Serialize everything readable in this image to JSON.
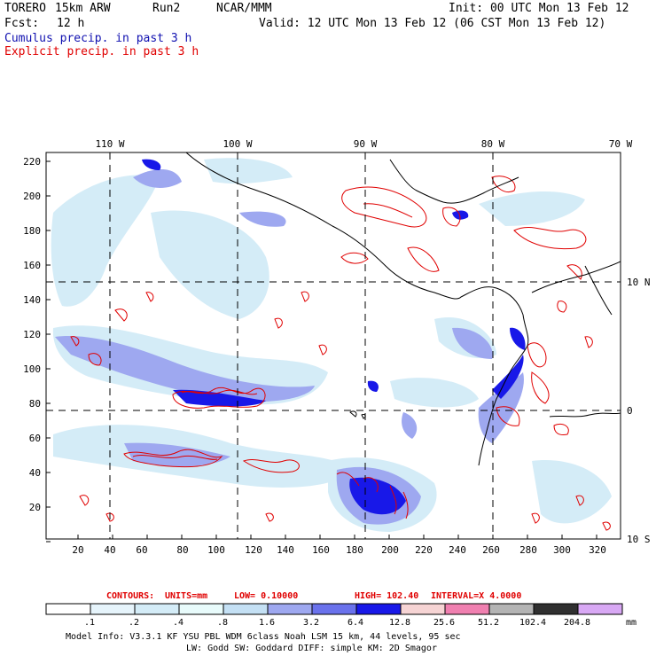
{
  "header": {
    "model": "TORERO",
    "resolution": "15km ARW",
    "run": "Run2",
    "org": "NCAR/MMM",
    "init": "Init: 00 UTC Mon 13 Feb 12",
    "fcst_label": "Fcst:",
    "fcst_value": "12 h",
    "valid": "Valid: 12 UTC Mon 13 Feb 12 (06 CST Mon 13 Feb 12)",
    "line3": "Cumulus precip. in past 3 h",
    "line4": "Explicit precip. in past 3 h"
  },
  "colors": {
    "line3": "#1010b0",
    "line4": "#e00000",
    "explicit_contour": "#e00000",
    "coast": "#000000"
  },
  "map": {
    "top_lon_labels": [
      "110 W",
      "100 W",
      "90 W",
      "80 W",
      "70 W"
    ],
    "right_lat_labels": [
      "10 N",
      "0",
      "10 S"
    ],
    "y_ticks": [
      "220",
      "200",
      "180",
      "160",
      "140",
      "120",
      "100",
      "80",
      "60",
      "40",
      "20"
    ],
    "x_ticks": [
      "20",
      "40",
      "60",
      "80",
      "100",
      "120",
      "140",
      "160",
      "180",
      "200",
      "220",
      "240",
      "260",
      "280",
      "300",
      "320"
    ]
  },
  "contour_info": {
    "label": "CONTOURS:",
    "units": "UNITS=mm",
    "low": "LOW= 0.10000",
    "high": "HIGH= 102.40",
    "interval": "INTERVAL=X 4.0000"
  },
  "colorbar": {
    "labels": [
      ".1",
      ".2",
      ".4",
      ".8",
      "1.6",
      "3.2",
      "6.4",
      "12.8",
      "25.6",
      "51.2",
      "102.4",
      "204.8"
    ],
    "unit": "mm",
    "colors": [
      "#ffffff",
      "#e6f4fb",
      "#d4ecf7",
      "#e8fbfb",
      "#c4e0f4",
      "#9ea8f0",
      "#6a72ec",
      "#1818e8",
      "#f6d4d4",
      "#f080b0",
      "#b4b4b4",
      "#303030",
      "#d8a8f4"
    ]
  },
  "footer": {
    "line1": "Model Info: V3.3.1   KF     YSU PBL  WDM 6class  Noah LSM  15 km,   44 levels,   95 sec",
    "line2": "LW: Godd SW: Goddard DIFF: simple KM: 2D Smagor"
  }
}
